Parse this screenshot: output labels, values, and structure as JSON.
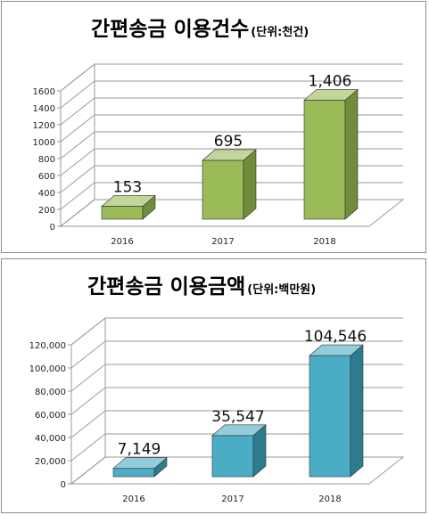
{
  "chart_data": [
    {
      "type": "bar",
      "title": "간편송금 이용건수",
      "unit": "(단위:천건)",
      "categories": [
        "2016",
        "2017",
        "2018"
      ],
      "values": [
        153,
        695,
        1406
      ],
      "value_labels": [
        "153",
        "695",
        "1,406"
      ],
      "yticks": [
        "0",
        "200",
        "400",
        "600",
        "800",
        "1000",
        "1200",
        "1400",
        "1600"
      ],
      "ylim": [
        0,
        1600
      ],
      "grid": true,
      "style": "3d-column",
      "colors": {
        "front": "#9bbb59",
        "side": "#718c3a",
        "top": "#c2d69b"
      }
    },
    {
      "type": "bar",
      "title": "간편송금 이용금액",
      "unit": "(단위:백만원)",
      "categories": [
        "2016",
        "2017",
        "2018"
      ],
      "values": [
        7149,
        35547,
        104546
      ],
      "value_labels": [
        "7,149",
        "35,547",
        "104,546"
      ],
      "yticks": [
        "0",
        "20,000",
        "40,000",
        "60,000",
        "80,000",
        "100,000",
        "120,000"
      ],
      "ylim": [
        0,
        120000
      ],
      "grid": true,
      "style": "3d-column",
      "colors": {
        "front": "#4bacc6",
        "side": "#2e7b8f",
        "top": "#93cddd"
      }
    }
  ]
}
